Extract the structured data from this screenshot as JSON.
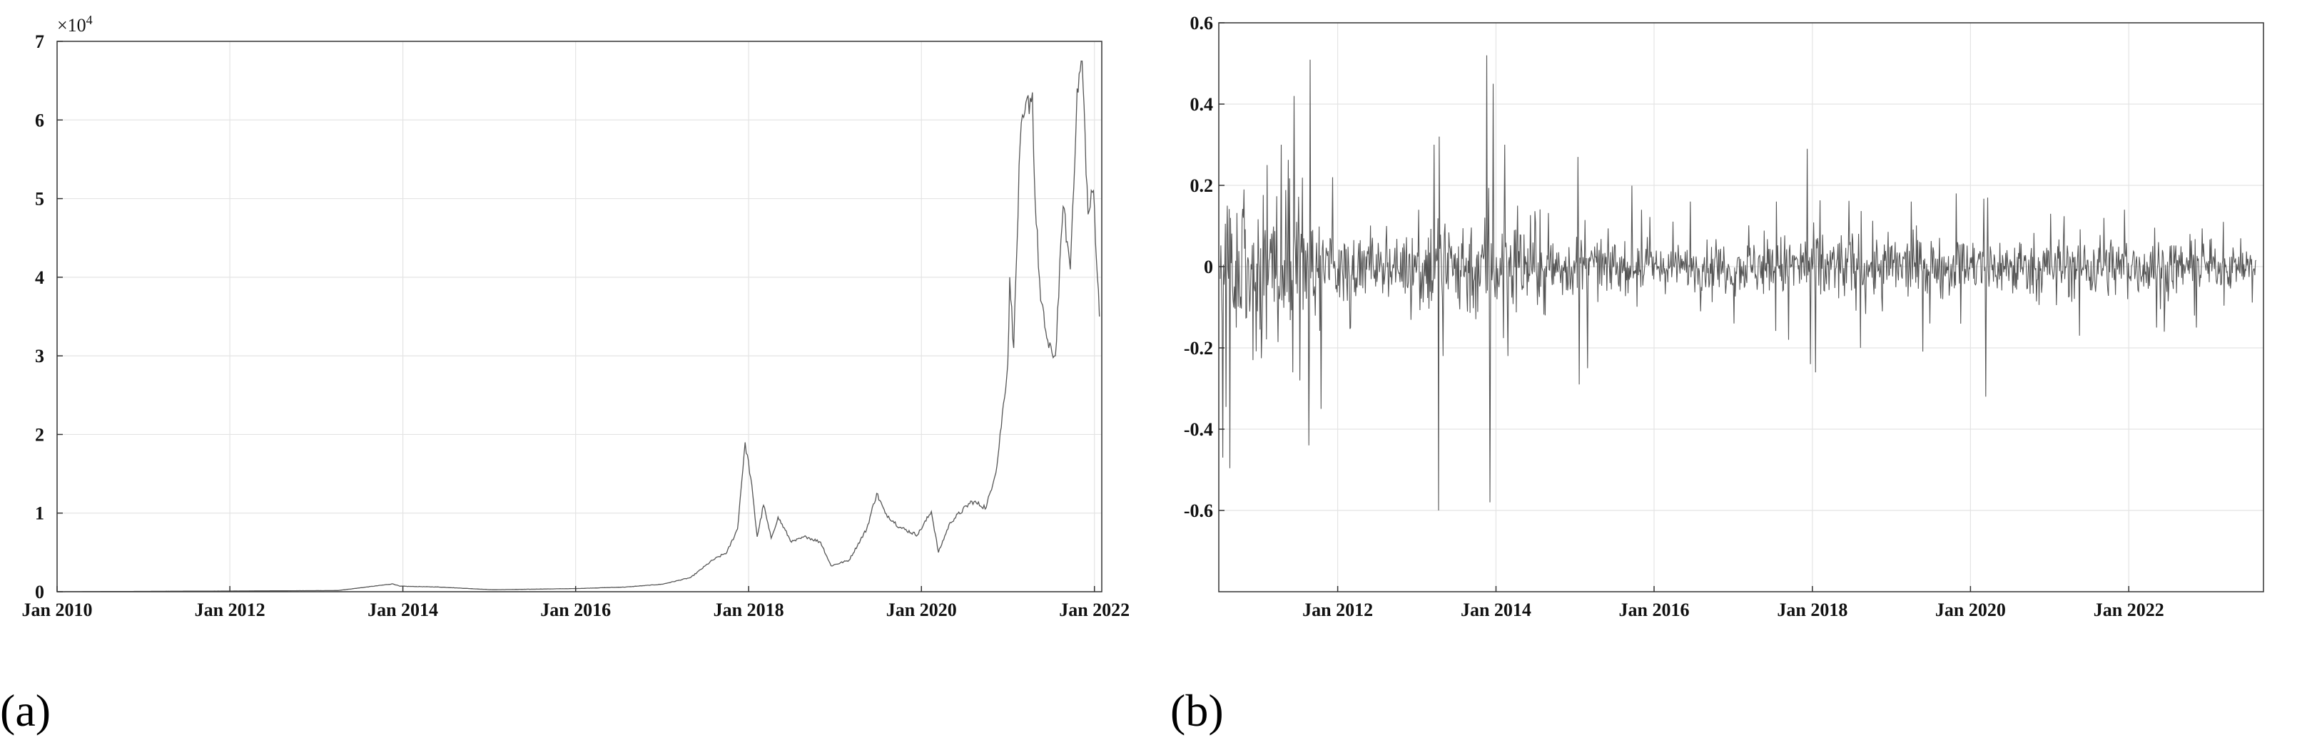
{
  "chart_data": [
    {
      "type": "line",
      "panel_label": "(a)",
      "title": "",
      "xlabel": "",
      "ylabel": "",
      "y_multiplier_base": "×10",
      "y_multiplier_exp": "4",
      "xlim": [
        "2010-01-01",
        "2022-02-01"
      ],
      "ylim": [
        0,
        70000
      ],
      "grid": true,
      "x_ticks": [
        {
          "date": "2010-01-01",
          "label": "Jan 2010"
        },
        {
          "date": "2012-01-01",
          "label": "Jan 2012"
        },
        {
          "date": "2014-01-01",
          "label": "Jan 2014"
        },
        {
          "date": "2016-01-01",
          "label": "Jan 2016"
        },
        {
          "date": "2018-01-01",
          "label": "Jan 2018"
        },
        {
          "date": "2020-01-01",
          "label": "Jan 2020"
        },
        {
          "date": "2022-01-01",
          "label": "Jan 2022"
        }
      ],
      "y_ticks": [
        {
          "value": 0,
          "label": "0"
        },
        {
          "value": 10000,
          "label": "1"
        },
        {
          "value": 20000,
          "label": "2"
        },
        {
          "value": 30000,
          "label": "3"
        },
        {
          "value": 40000,
          "label": "4"
        },
        {
          "value": 50000,
          "label": "5"
        },
        {
          "value": 60000,
          "label": "6"
        },
        {
          "value": 70000,
          "label": "7"
        }
      ],
      "series": [
        {
          "color": "#555555",
          "points": [
            [
              "2010-01-01",
              0
            ],
            [
              "2013-04-01",
              150
            ],
            [
              "2013-11-20",
              1000
            ],
            [
              "2013-12-20",
              700
            ],
            [
              "2014-06-01",
              600
            ],
            [
              "2015-01-15",
              250
            ],
            [
              "2016-01-01",
              400
            ],
            [
              "2016-08-01",
              600
            ],
            [
              "2017-01-01",
              950
            ],
            [
              "2017-05-01",
              1800
            ],
            [
              "2017-08-01",
              4000
            ],
            [
              "2017-10-01",
              5000
            ],
            [
              "2017-11-15",
              8000
            ],
            [
              "2017-12-17",
              19000
            ],
            [
              "2018-01-10",
              14500
            ],
            [
              "2018-02-06",
              7000
            ],
            [
              "2018-03-05",
              11000
            ],
            [
              "2018-04-06",
              6800
            ],
            [
              "2018-05-05",
              9500
            ],
            [
              "2018-07-01",
              6300
            ],
            [
              "2018-09-01",
              7000
            ],
            [
              "2018-11-01",
              6300
            ],
            [
              "2018-12-15",
              3300
            ],
            [
              "2019-03-01",
              4000
            ],
            [
              "2019-05-15",
              8000
            ],
            [
              "2019-06-26",
              12500
            ],
            [
              "2019-08-01",
              10000
            ],
            [
              "2019-10-01",
              8200
            ],
            [
              "2019-12-15",
              7200
            ],
            [
              "2020-02-12",
              10200
            ],
            [
              "2020-03-13",
              5000
            ],
            [
              "2020-05-01",
              8800
            ],
            [
              "2020-08-01",
              11500
            ],
            [
              "2020-10-01",
              10700
            ],
            [
              "2020-11-15",
              16000
            ],
            [
              "2020-12-31",
              29000
            ],
            [
              "2021-01-08",
              40000
            ],
            [
              "2021-01-25",
              31000
            ],
            [
              "2021-02-21",
              57000
            ],
            [
              "2021-03-13",
              61000
            ],
            [
              "2021-04-14",
              63500
            ],
            [
              "2021-04-25",
              50000
            ],
            [
              "2021-05-19",
              37000
            ],
            [
              "2021-06-22",
              31000
            ],
            [
              "2021-07-20",
              30000
            ],
            [
              "2021-08-22",
              49000
            ],
            [
              "2021-09-21",
              41000
            ],
            [
              "2021-10-20",
              64000
            ],
            [
              "2021-11-10",
              67500
            ],
            [
              "2021-12-05",
              48000
            ],
            [
              "2021-12-28",
              51000
            ],
            [
              "2022-01-22",
              35000
            ]
          ]
        }
      ]
    },
    {
      "type": "line",
      "panel_label": "(b)",
      "title": "",
      "xlabel": "",
      "ylabel": "",
      "xlim": [
        "2010-07-01",
        "2023-09-15"
      ],
      "ylim": [
        -0.8,
        0.6
      ],
      "grid": true,
      "x_ticks": [
        {
          "date": "2012-01-01",
          "label": "Jan 2012"
        },
        {
          "date": "2014-01-01",
          "label": "Jan 2014"
        },
        {
          "date": "2016-01-01",
          "label": "Jan 2016"
        },
        {
          "date": "2018-01-01",
          "label": "Jan 2018"
        },
        {
          "date": "2020-01-01",
          "label": "Jan 2020"
        },
        {
          "date": "2022-01-01",
          "label": "Jan 2022"
        }
      ],
      "y_ticks": [
        {
          "value": 0.6,
          "label": "0.6"
        },
        {
          "value": 0.4,
          "label": "0.4"
        },
        {
          "value": 0.2,
          "label": "0.2"
        },
        {
          "value": 0,
          "label": "0"
        },
        {
          "value": -0.2,
          "label": "-0.2"
        },
        {
          "value": -0.4,
          "label": "-0.4"
        },
        {
          "value": -0.6,
          "label": "-0.6"
        }
      ],
      "volatility_profile": [
        [
          "2010-07-01",
          0.08
        ],
        [
          "2011-06-01",
          0.09
        ],
        [
          "2012-01-01",
          0.04
        ],
        [
          "2012-10-01",
          0.03
        ],
        [
          "2013-04-01",
          0.07
        ],
        [
          "2014-01-01",
          0.06
        ],
        [
          "2015-01-01",
          0.035
        ],
        [
          "2016-06-01",
          0.025
        ],
        [
          "2017-06-01",
          0.035
        ],
        [
          "2018-02-01",
          0.045
        ],
        [
          "2019-06-01",
          0.035
        ],
        [
          "2020-06-01",
          0.035
        ],
        [
          "2021-06-01",
          0.04
        ],
        [
          "2023-09-15",
          0.022
        ]
      ],
      "spikes": [
        [
          "2010-07-20",
          -0.47
        ],
        [
          "2010-08-10",
          0.15
        ],
        [
          "2010-09-20",
          -0.15
        ],
        [
          "2010-10-25",
          0.19
        ],
        [
          "2010-12-05",
          -0.23
        ],
        [
          "2011-02-10",
          0.25
        ],
        [
          "2011-04-15",
          0.3
        ],
        [
          "2011-06-08",
          -0.26
        ],
        [
          "2011-06-15",
          0.42
        ],
        [
          "2011-07-10",
          -0.28
        ],
        [
          "2011-08-20",
          -0.44
        ],
        [
          "2011-10-15",
          -0.35
        ],
        [
          "2011-12-10",
          0.22
        ],
        [
          "2012-03-01",
          -0.15
        ],
        [
          "2012-08-15",
          0.1
        ],
        [
          "2013-01-10",
          0.14
        ],
        [
          "2013-03-20",
          0.3
        ],
        [
          "2013-04-10",
          -0.6
        ],
        [
          "2013-04-15",
          0.32
        ],
        [
          "2013-05-01",
          -0.22
        ],
        [
          "2013-11-20",
          0.52
        ],
        [
          "2013-12-05",
          -0.58
        ],
        [
          "2013-12-18",
          0.45
        ],
        [
          "2014-02-10",
          0.3
        ],
        [
          "2014-02-26",
          -0.22
        ],
        [
          "2014-04-10",
          0.15
        ],
        [
          "2014-08-15",
          -0.12
        ],
        [
          "2015-01-14",
          0.27
        ],
        [
          "2015-01-20",
          -0.29
        ],
        [
          "2015-03-01",
          -0.25
        ],
        [
          "2015-11-04",
          0.14
        ],
        [
          "2016-06-17",
          0.16
        ],
        [
          "2016-08-02",
          -0.11
        ],
        [
          "2017-01-05",
          -0.14
        ],
        [
          "2017-07-20",
          0.16
        ],
        [
          "2017-09-14",
          -0.18
        ],
        [
          "2017-12-07",
          0.29
        ],
        [
          "2017-12-22",
          -0.24
        ],
        [
          "2018-01-16",
          -0.26
        ],
        [
          "2018-11-20",
          -0.11
        ],
        [
          "2019-04-02",
          0.16
        ],
        [
          "2019-06-27",
          -0.14
        ],
        [
          "2019-10-26",
          0.18
        ],
        [
          "2020-03-12",
          -0.32
        ],
        [
          "2020-03-19",
          0.17
        ],
        [
          "2021-01-04",
          0.13
        ],
        [
          "2021-05-19",
          -0.17
        ],
        [
          "2021-09-07",
          0.12
        ],
        [
          "2022-05-09",
          -0.15
        ],
        [
          "2022-06-13",
          -0.16
        ],
        [
          "2022-11-09",
          -0.15
        ],
        [
          "2023-03-13",
          0.11
        ]
      ],
      "series": [
        {
          "color": "#555555"
        }
      ]
    }
  ]
}
